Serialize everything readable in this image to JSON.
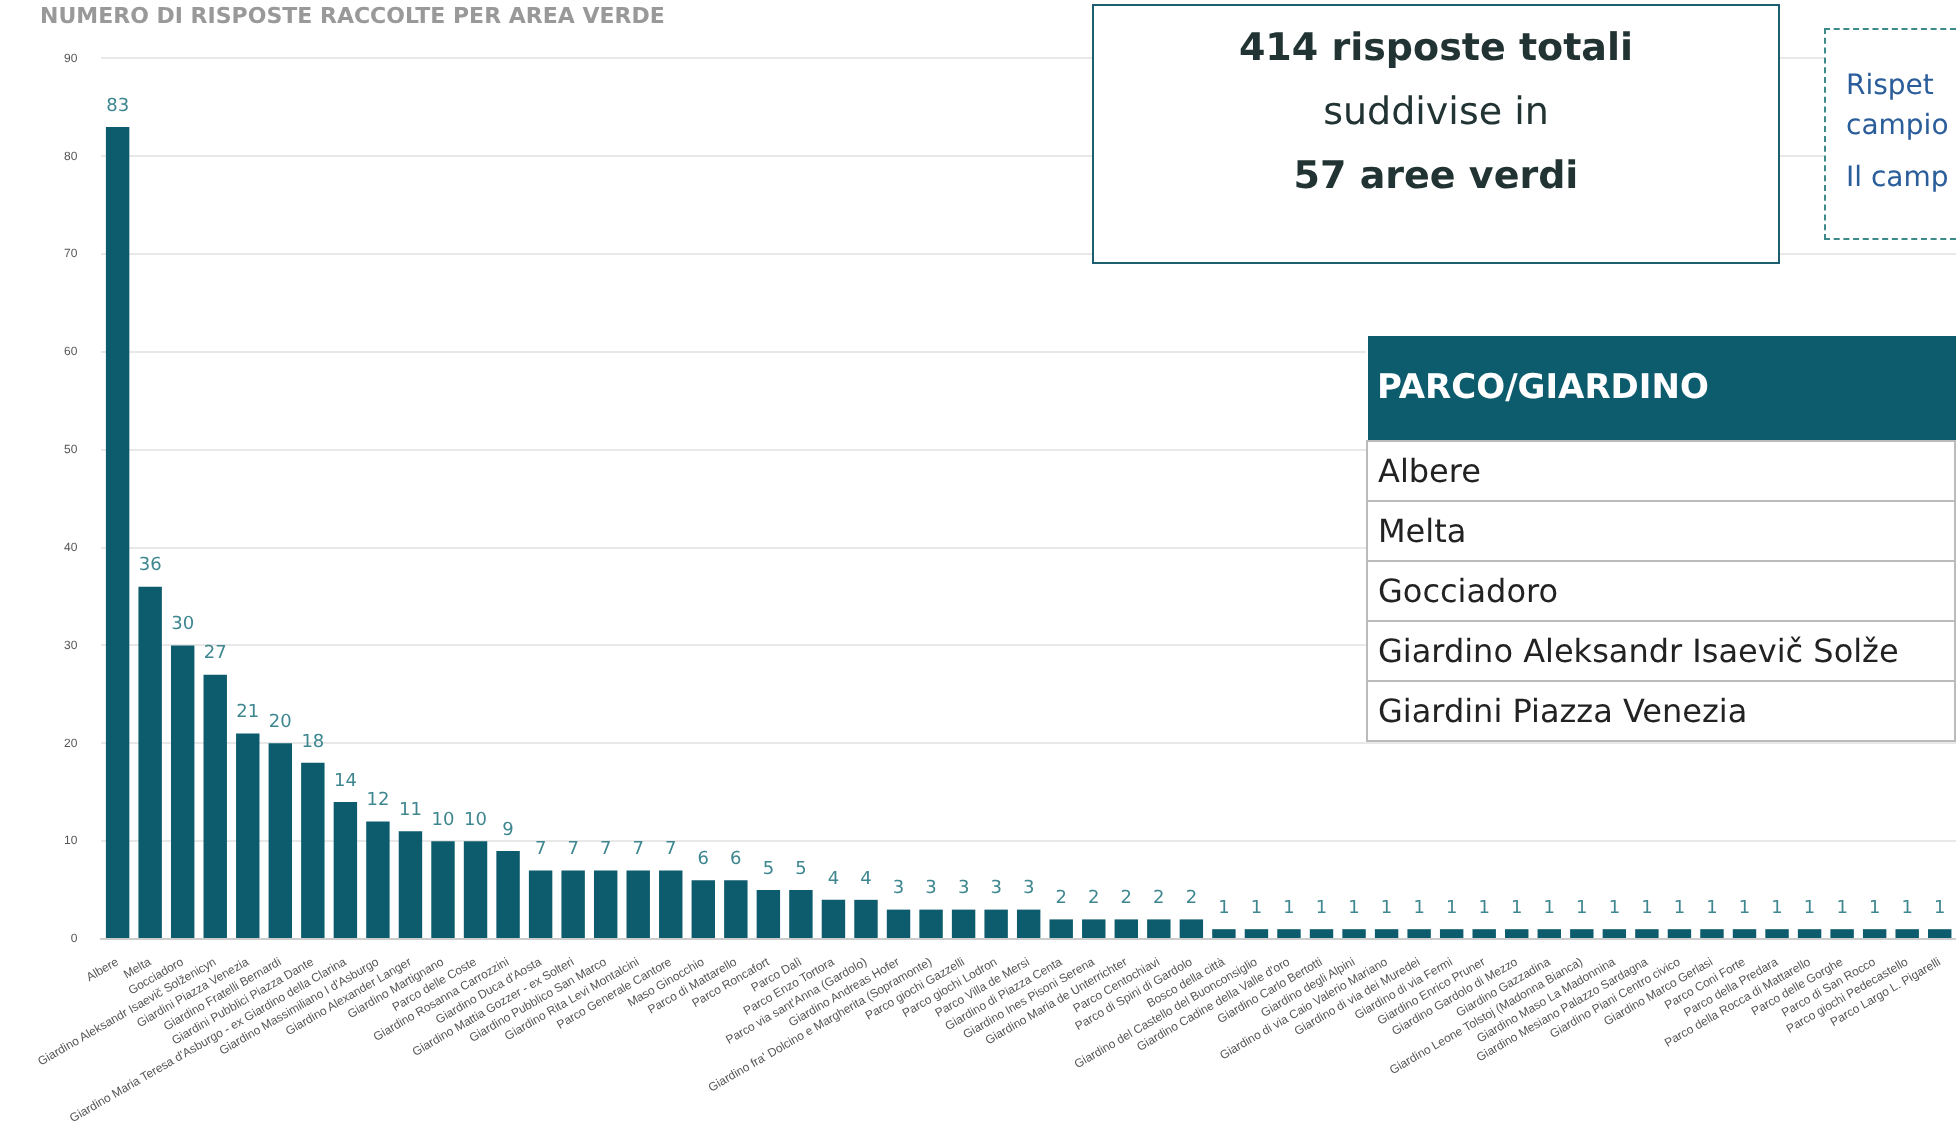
{
  "chart_data": {
    "type": "bar",
    "title": "NUMERO DI RISPOSTE RACCOLTE PER AREA VERDE",
    "categories": [
      "Albere",
      "Melta",
      "Gocciadoro",
      "Giardino Aleksandr Isaevič Solženicyn",
      "Giardini Piazza Venezia",
      "Giardino Fratelli Bernardi",
      "Giardini Pubblici Piazza Dante",
      "Giardino Maria Teresa d'Asburgo - ex Giardino della Clarina",
      "Giardino Massimiliano I d'Asburgo",
      "Giardino Alexander Langer",
      "Giardino Martignano",
      "Parco delle Coste",
      "Giardino Rosanna Carrozzini",
      "Giardino Duca d'Aosta",
      "Giardino Mattia Gozzer - ex Solteri",
      "Giardino Pubblico San Marco",
      "Giardino Rita Levi Montalcini",
      "Parco Generale Cantore",
      "Maso Ginocchio",
      "Parco di Mattarello",
      "Parco Roncafort",
      "Parco Dalì",
      "Parco Enzo Tortora",
      "Parco via sant'Anna (Gardolo)",
      "Giardino Andreas Hofer",
      "Giardino fra' Dolcino e Margherita (Sopramonte)",
      "Parco giochi Gazzelli",
      "Parco giochi Lodron",
      "Parco Villa de Mersi",
      "Giardino di Piazza Centa",
      "Giardino Ines Pisoni Serena",
      "Giardino Maria de Unterrichter",
      "Parco Centochiavi",
      "Parco di Spini di Gardolo",
      "Bosco della città",
      "Giardino del Castello del Buonconsiglio",
      "Giardino Cadine della Valle d'oro",
      "Giardino Carlo Bertotti",
      "Giardino degli Alpini",
      "Giardino di via Caio Valerio Mariano",
      "Giardino di via dei Muredei",
      "Giardino di via Fermi",
      "Giardino Enrico Pruner",
      "Giardino Gardolo di Mezzo",
      "Giardino Gazzadina",
      "Giardino Leone Tolstoj (Madonna Bianca)",
      "Giardino Maso La Madonnina",
      "Giardino Mesiano Palazzo Sardagna",
      "Giardino Piani Centro civico",
      "Giardino Marco Gerlasi",
      "Parco Coni Forte",
      "Parco della Predara",
      "Parco della Rocca di Mattarello",
      "Parco delle Gorghe",
      "Parco di San Rocco",
      "Parco giochi Pedecastello",
      "Parco Largo L. Pigarelli"
    ],
    "values": [
      83,
      36,
      30,
      27,
      21,
      20,
      18,
      14,
      12,
      11,
      10,
      10,
      9,
      7,
      7,
      7,
      7,
      7,
      6,
      6,
      5,
      5,
      4,
      4,
      3,
      3,
      3,
      3,
      3,
      2,
      2,
      2,
      2,
      2,
      1,
      1,
      1,
      1,
      1,
      1,
      1,
      1,
      1,
      1,
      1,
      1,
      1,
      1,
      1,
      1,
      1,
      1,
      1,
      1,
      1,
      1,
      1
    ],
    "color": "#0d5c6e",
    "ylim": [
      0,
      90
    ],
    "yticks": [
      0,
      10,
      20,
      30,
      40,
      50,
      60,
      70,
      80,
      90
    ],
    "grid": "y",
    "data_labels": true,
    "annotations": [
      "414 risposte totali",
      "suddivise in",
      "57 aree verdi",
      "Rispet",
      "campio",
      "Il camp",
      "PARCO/GIARDINO",
      "Albere",
      "Melta",
      "Gocciadoro",
      "Giardino Aleksandr Isaevič Solže",
      "Giardini Piazza Venezia"
    ]
  }
}
